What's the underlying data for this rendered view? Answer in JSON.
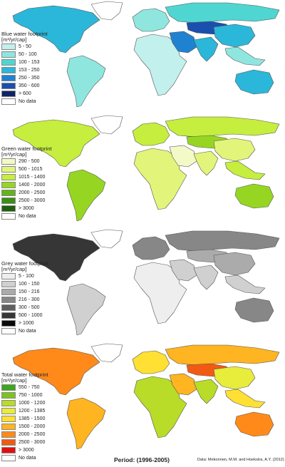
{
  "maps": [
    {
      "id": "blue",
      "title": "Blue water footprint",
      "unit": "[m³/yr/cap]",
      "legend": [
        {
          "label": "5 - 50",
          "color": "#c2f0ec"
        },
        {
          "label": "50 - 100",
          "color": "#8fe6df"
        },
        {
          "label": "100 - 153",
          "color": "#4fd6d2"
        },
        {
          "label": "153 - 250",
          "color": "#2bb7d9"
        },
        {
          "label": "250 - 350",
          "color": "#1f82d0"
        },
        {
          "label": "350 - 600",
          "color": "#1a4fae"
        },
        {
          "label": "> 600",
          "color": "#0e2466"
        },
        {
          "label": "No data",
          "color": "#ffffff"
        }
      ],
      "region_levels": {
        "north_america": 4,
        "greenland": 8,
        "south_america": 2,
        "europe": 2,
        "africa": 1,
        "middle_east": 5,
        "russia": 3,
        "central_asia": 6,
        "south_asia": 4,
        "east_asia": 4,
        "southeast_asia": 2,
        "australia": 4
      }
    },
    {
      "id": "green",
      "title": "Green water footprint",
      "unit": "[m³/yr/cap]",
      "legend": [
        {
          "label": "290 - 500",
          "color": "#f4f9c8"
        },
        {
          "label": "500 - 1015",
          "color": "#e2f57a"
        },
        {
          "label": "1015 - 1400",
          "color": "#c6ee3e"
        },
        {
          "label": "1400 - 2000",
          "color": "#96d622"
        },
        {
          "label": "2000 - 2500",
          "color": "#62b51a"
        },
        {
          "label": "2500 - 3000",
          "color": "#3a8f14"
        },
        {
          "label": "> 3000",
          "color": "#1f5f0c"
        },
        {
          "label": "No data",
          "color": "#ffffff"
        }
      ],
      "region_levels": {
        "north_america": 3,
        "greenland": 8,
        "south_america": 4,
        "europe": 3,
        "africa": 2,
        "middle_east": 1,
        "russia": 3,
        "central_asia": 4,
        "south_asia": 2,
        "east_asia": 2,
        "southeast_asia": 3,
        "australia": 4
      }
    },
    {
      "id": "grey",
      "title": "Grey water footprint",
      "unit": "[m³/yr/cap]",
      "legend": [
        {
          "label": "5 - 100",
          "color": "#eeeeee"
        },
        {
          "label": "100 - 150",
          "color": "#d0d0d0"
        },
        {
          "label": "150 - 216",
          "color": "#ababab"
        },
        {
          "label": "216 - 300",
          "color": "#878787"
        },
        {
          "label": "300 - 500",
          "color": "#5e5e5e"
        },
        {
          "label": "500 - 1000",
          "color": "#363636"
        },
        {
          "label": "> 1000",
          "color": "#0a0a0a"
        },
        {
          "label": "No data",
          "color": "#ffffff"
        }
      ],
      "region_levels": {
        "north_america": 6,
        "greenland": 8,
        "south_america": 2,
        "europe": 4,
        "africa": 1,
        "middle_east": 2,
        "russia": 4,
        "central_asia": 3,
        "south_asia": 2,
        "east_asia": 3,
        "southeast_asia": 2,
        "australia": 4
      }
    },
    {
      "id": "total",
      "title": "Total water footprint",
      "unit": "[m³/yr/cap]",
      "legend": [
        {
          "label": "550 - 750",
          "color": "#3aa81a"
        },
        {
          "label": "750 - 1000",
          "color": "#7cc41e"
        },
        {
          "label": "1000 - 1200",
          "color": "#b9dc28"
        },
        {
          "label": "1200 - 1385",
          "color": "#e8ec3a"
        },
        {
          "label": "1385 - 1500",
          "color": "#ffe033"
        },
        {
          "label": "1500 - 2000",
          "color": "#ffb421"
        },
        {
          "label": "2000 - 2500",
          "color": "#ff8a1a"
        },
        {
          "label": "2500 - 3000",
          "color": "#f25a14"
        },
        {
          "label": "> 3000",
          "color": "#e01010"
        },
        {
          "label": "No data",
          "color": "#ffffff"
        }
      ],
      "region_levels": {
        "north_america": 7,
        "greenland": 10,
        "south_america": 6,
        "europe": 5,
        "africa": 3,
        "middle_east": 6,
        "russia": 6,
        "central_asia": 8,
        "south_asia": 3,
        "east_asia": 4,
        "southeast_asia": 5,
        "australia": 7
      }
    }
  ],
  "footer": {
    "period": "Period: (1996-2005)",
    "source": "Data: Mekonnen, M.M. and Hoekstra, A.Y. (2012)"
  }
}
